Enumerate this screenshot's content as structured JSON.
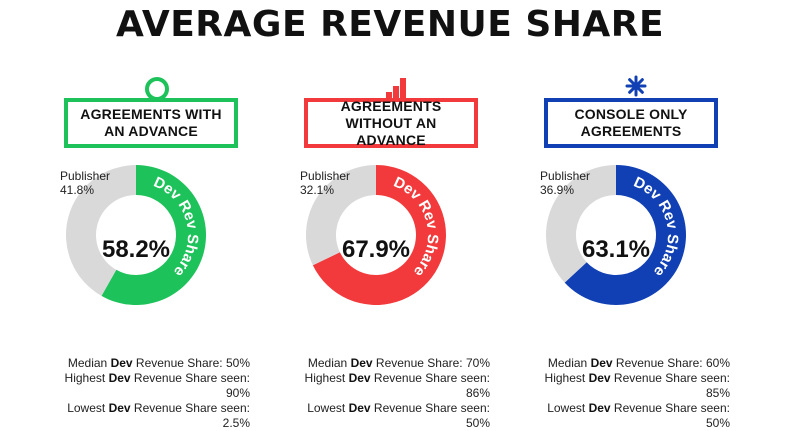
{
  "title": "AVERAGE REVENUE SHARE",
  "chart_data": [
    {
      "type": "pie",
      "title": "AGREEMENTS WITH AN ADVANCE",
      "color": "#1ec25a",
      "slices": [
        {
          "label": "Dev Rev Share",
          "value": 58.2
        },
        {
          "label": "Publisher",
          "value": 41.8
        }
      ],
      "center_label": "58.2%",
      "publisher_label": "Publisher",
      "publisher_value": "41.8%",
      "stats": [
        {
          "prefix": "Median ",
          "bold": "Dev",
          "suffix": " Revenue Share: 50%"
        },
        {
          "prefix": "Highest ",
          "bold": "Dev",
          "suffix": " Revenue Share seen: 90%"
        },
        {
          "prefix": "Lowest ",
          "bold": "Dev",
          "suffix": " Revenue Share seen: 2.5%"
        }
      ]
    },
    {
      "type": "pie",
      "title": "AGREEMENTS WITHOUT AN ADVANCE",
      "color": "#f23a3c",
      "slices": [
        {
          "label": "Dev Rev Share",
          "value": 67.9
        },
        {
          "label": "Publisher",
          "value": 32.1
        }
      ],
      "center_label": "67.9%",
      "publisher_label": "Publisher",
      "publisher_value": "32.1%",
      "stats": [
        {
          "prefix": "Median ",
          "bold": "Dev",
          "suffix": " Revenue Share: 70%"
        },
        {
          "prefix": "Highest ",
          "bold": "Dev",
          "suffix": " Revenue Share seen: 86%"
        },
        {
          "prefix": "Lowest ",
          "bold": "Dev",
          "suffix": " Revenue Share seen: 50%"
        }
      ]
    },
    {
      "type": "pie",
      "title": "CONSOLE ONLY AGREEMENTS",
      "color": "#1140b4",
      "slices": [
        {
          "label": "Dev Rev Share",
          "value": 63.1
        },
        {
          "label": "Publisher",
          "value": 36.9
        }
      ],
      "center_label": "63.1%",
      "publisher_label": "Publisher",
      "publisher_value": "36.9%",
      "stats": [
        {
          "prefix": "Median ",
          "bold": "Dev",
          "suffix": " Revenue Share: 60%"
        },
        {
          "prefix": "Highest ",
          "bold": "Dev",
          "suffix": " Revenue Share seen: 85%"
        },
        {
          "prefix": "Lowest ",
          "bold": "Dev",
          "suffix": " Revenue Share seen: 50%"
        }
      ]
    }
  ],
  "colors": {
    "publisher_gray": "#d9d9d9"
  }
}
